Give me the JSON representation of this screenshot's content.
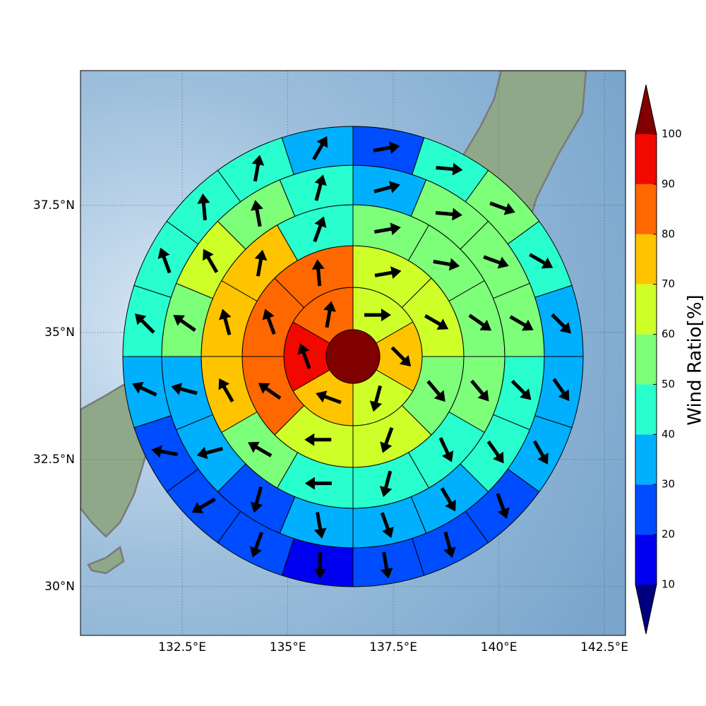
{
  "chart_data": {
    "type": "wind_rings",
    "xlim": [
      130.09,
      143.0
    ],
    "ylim": [
      29.04,
      40.15
    ],
    "xticks": [
      {
        "value": 132.5,
        "label": "132.5°E"
      },
      {
        "value": 135,
        "label": "135°E"
      },
      {
        "value": 137.5,
        "label": "137.5°E"
      },
      {
        "value": 140,
        "label": "140°E"
      },
      {
        "value": 142.5,
        "label": "142.5°E"
      }
    ],
    "yticks": [
      {
        "value": 30,
        "label": "30°N"
      },
      {
        "value": 32.5,
        "label": "32.5°N"
      },
      {
        "value": 35,
        "label": "35°N"
      },
      {
        "value": 37.5,
        "label": "37.5°N"
      }
    ],
    "grid": true,
    "center": {
      "value": 100
    },
    "rings": [
      {
        "values": [
          62,
          75,
          62,
          72,
          92,
          84
        ],
        "directions": [
          90,
          135,
          195,
          290,
          340,
          10
        ]
      },
      {
        "values": [
          62,
          64,
          55,
          62,
          62,
          80,
          82,
          82
        ],
        "directions": [
          80,
          120,
          140,
          200,
          270,
          305,
          340,
          355
        ]
      },
      {
        "values": [
          55,
          55,
          55,
          55,
          45,
          45,
          45,
          58,
          72,
          72,
          70,
          45
        ],
        "directions": [
          80,
          100,
          125,
          140,
          155,
          195,
          270,
          300,
          330,
          345,
          10,
          20
        ]
      },
      {
        "values": [
          35,
          55,
          55,
          55,
          45,
          40,
          35,
          35,
          35,
          28,
          33,
          38,
          55,
          62,
          55,
          45
        ],
        "directions": [
          75,
          95,
          110,
          120,
          135,
          145,
          150,
          160,
          170,
          195,
          255,
          285,
          305,
          330,
          350,
          15
        ]
      },
      {
        "values": [
          25,
          45,
          55,
          45,
          35,
          35,
          35,
          28,
          25,
          22,
          15,
          22,
          25,
          25,
          35,
          45,
          45,
          45,
          45,
          35
        ],
        "directions": [
          80,
          95,
          110,
          120,
          135,
          145,
          150,
          160,
          165,
          170,
          180,
          200,
          240,
          280,
          295,
          315,
          340,
          355,
          10,
          30
        ]
      }
    ],
    "colorbar": {
      "label": "Wind Ratio[%]",
      "levels": [
        10,
        20,
        30,
        40,
        50,
        60,
        70,
        80,
        90,
        100
      ],
      "colors": [
        "#00007f",
        "#0000f1",
        "#004cff",
        "#00b0ff",
        "#29ffce",
        "#7dff7a",
        "#ceff29",
        "#ffc400",
        "#ff6800",
        "#f10800",
        "#800000"
      ],
      "extend": "both"
    }
  }
}
